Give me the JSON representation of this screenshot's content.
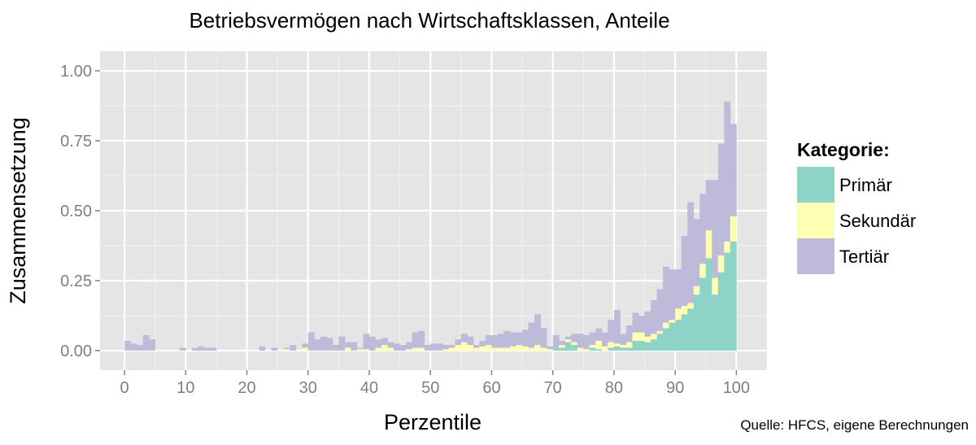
{
  "chart_data": {
    "type": "bar",
    "stacked": true,
    "title": "Betriebsvermögen nach Wirtschaftsklassen, Anteile",
    "xlabel": "Perzentile",
    "ylabel": "Zusammensetzung",
    "xlim": [
      -4,
      105
    ],
    "ylim": [
      -0.07,
      1.07
    ],
    "x_ticks": [
      0,
      10,
      20,
      30,
      40,
      50,
      60,
      70,
      80,
      90,
      100
    ],
    "x_tick_labels": [
      "0",
      "10",
      "20",
      "30",
      "40",
      "50",
      "60",
      "70",
      "80",
      "90",
      "100"
    ],
    "y_ticks": [
      0,
      0.25,
      0.5,
      0.75,
      1.0
    ],
    "y_tick_labels": [
      "0.00",
      "0.25",
      "0.50",
      "0.75",
      "1.00"
    ],
    "grid": true,
    "legend_title": "Kategorie:",
    "legend_position": "right",
    "x": [
      1,
      2,
      3,
      4,
      5,
      6,
      7,
      8,
      9,
      10,
      11,
      12,
      13,
      14,
      15,
      16,
      17,
      18,
      19,
      20,
      21,
      22,
      23,
      24,
      25,
      26,
      27,
      28,
      29,
      30,
      31,
      32,
      33,
      34,
      35,
      36,
      37,
      38,
      39,
      40,
      41,
      42,
      43,
      44,
      45,
      46,
      47,
      48,
      49,
      50,
      51,
      52,
      53,
      54,
      55,
      56,
      57,
      58,
      59,
      60,
      61,
      62,
      63,
      64,
      65,
      66,
      67,
      68,
      69,
      70,
      71,
      72,
      73,
      74,
      75,
      76,
      77,
      78,
      79,
      80,
      81,
      82,
      83,
      84,
      85,
      86,
      87,
      88,
      89,
      90,
      91,
      92,
      93,
      94,
      95,
      96,
      97,
      98,
      99,
      100
    ],
    "series": [
      {
        "name": "Primär",
        "color": "#8dd3c7",
        "values": [
          0,
          0,
          0,
          0,
          0,
          0,
          0,
          0,
          0,
          0,
          0,
          0,
          0,
          0,
          0,
          0,
          0,
          0,
          0,
          0,
          0,
          0,
          0,
          0,
          0,
          0,
          0,
          0,
          0,
          0,
          0,
          0,
          0,
          0,
          0,
          0,
          0,
          0,
          0,
          0,
          0,
          0,
          0,
          0,
          0,
          0,
          0,
          0,
          0,
          0,
          0,
          0,
          0,
          0,
          0,
          0,
          0,
          0,
          0,
          0,
          0,
          0,
          0,
          0,
          0,
          0,
          0,
          0,
          0,
          0,
          0.01,
          0.01,
          0.03,
          0.02,
          0,
          0,
          0.01,
          0.005,
          0,
          0.01,
          0.015,
          0.01,
          0.01,
          0.035,
          0.035,
          0.03,
          0.04,
          0.06,
          0.08,
          0.1,
          0.11,
          0.13,
          0.15,
          0.2,
          0.26,
          0.33,
          0.2,
          0.28,
          0.35,
          0.39
        ]
      },
      {
        "name": "Sekundär",
        "color": "#ffffb3",
        "values": [
          0,
          0,
          0,
          0,
          0,
          0,
          0,
          0,
          0,
          0,
          0,
          0,
          0,
          0,
          0,
          0,
          0,
          0,
          0,
          0,
          0,
          0,
          0,
          0,
          0,
          0,
          0.005,
          0,
          0,
          0.01,
          0,
          0,
          0,
          0,
          0,
          0,
          0.01,
          0,
          0.005,
          0.005,
          0,
          0.01,
          0.02,
          0.01,
          0,
          0,
          0.005,
          0.01,
          0.01,
          0,
          0,
          0,
          0.005,
          0.01,
          0.02,
          0.03,
          0.02,
          0.01,
          0.015,
          0.02,
          0.01,
          0.01,
          0.01,
          0.015,
          0.02,
          0.015,
          0.01,
          0.02,
          0.01,
          0.005,
          0,
          0.01,
          0.01,
          0.01,
          0.01,
          0.005,
          0.01,
          0.03,
          0.015,
          0.02,
          0.01,
          0.01,
          0.02,
          0.03,
          0.03,
          0.02,
          0.02,
          0.01,
          0.02,
          0.01,
          0.04,
          0.03,
          0.02,
          0.03,
          0.05,
          0.1,
          0.06,
          0.06,
          0.04,
          0.09
        ]
      },
      {
        "name": "Tertiär",
        "color": "#bebada",
        "values": [
          0.035,
          0.025,
          0.02,
          0.055,
          0.04,
          0,
          0,
          0,
          0,
          0.01,
          0,
          0.01,
          0.015,
          0.01,
          0.01,
          0,
          0,
          0,
          0,
          0,
          0,
          0,
          0.015,
          0,
          0.01,
          0,
          0.005,
          0.02,
          0,
          0.015,
          0.065,
          0.04,
          0.05,
          0.045,
          0.02,
          0.05,
          0.02,
          0.03,
          0.005,
          0.055,
          0.05,
          0.03,
          0.025,
          0.02,
          0.025,
          0.02,
          0.025,
          0.055,
          0.06,
          0.02,
          0.025,
          0.025,
          0.015,
          0.01,
          0.02,
          0.03,
          0.03,
          0.01,
          0.02,
          0.035,
          0.045,
          0.05,
          0.06,
          0.05,
          0.045,
          0.06,
          0.09,
          0.11,
          0.07,
          0.01,
          0.045,
          0.015,
          0.01,
          0.03,
          0.05,
          0.05,
          0.045,
          0.045,
          0.05,
          0.08,
          0.12,
          0.04,
          0.06,
          0.07,
          0.06,
          0.09,
          0.12,
          0.15,
          0.2,
          0.18,
          0.14,
          0.25,
          0.36,
          0.24,
          0.25,
          0.18,
          0.35,
          0.4,
          0.5,
          0.33
        ]
      }
    ]
  },
  "legend": {
    "title": "Kategorie:",
    "items": [
      {
        "label": "Primär",
        "color": "#8dd3c7"
      },
      {
        "label": "Sekundär",
        "color": "#ffffb3"
      },
      {
        "label": "Tertiär",
        "color": "#bebada"
      }
    ]
  },
  "source_note": "Quelle: HFCS, eigene Berechnungen",
  "colors": {
    "panel_background": "#e5e5e5",
    "gridline_major": "#ffffff",
    "gridline_minor": "#f2f2f2",
    "tick_label": "#7f7f7f"
  }
}
